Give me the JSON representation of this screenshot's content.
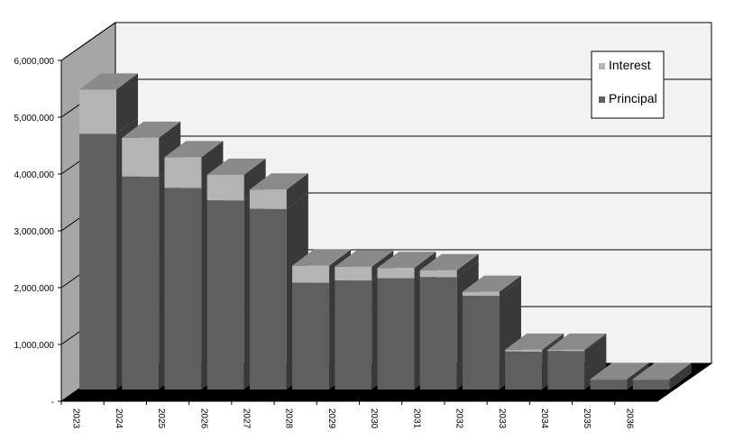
{
  "chart_data": {
    "type": "bar",
    "stacked": true,
    "style": "3d",
    "categories": [
      "2023",
      "2024",
      "2025",
      "2026",
      "2027",
      "2028",
      "2029",
      "2030",
      "2031",
      "2032",
      "2033",
      "2034",
      "2035",
      "2036"
    ],
    "series": [
      {
        "name": "Principal",
        "color": "#5f5f5f",
        "values": [
          4500000,
          3750000,
          3550000,
          3330000,
          3180000,
          1880000,
          1920000,
          1960000,
          1980000,
          1650000,
          670000,
          680000,
          170000,
          170000
        ]
      },
      {
        "name": "Interest",
        "color": "#b4b4b4",
        "values": [
          780000,
          680000,
          540000,
          450000,
          340000,
          300000,
          240000,
          180000,
          120000,
          70000,
          30000,
          20000,
          10000,
          10000
        ]
      }
    ],
    "ylim": [
      0,
      6000000
    ],
    "yticks": [
      0,
      1000000,
      2000000,
      3000000,
      4000000,
      5000000,
      6000000
    ],
    "ytick_labels": [
      "-",
      "1,000,000",
      "2,000,000",
      "3,000,000",
      "4,000,000",
      "5,000,000",
      "6,000,000"
    ],
    "grid": true,
    "legend": {
      "position": "top-right",
      "entries": [
        "Interest",
        "Principal"
      ]
    },
    "title": "",
    "xlabel": "",
    "ylabel": ""
  }
}
